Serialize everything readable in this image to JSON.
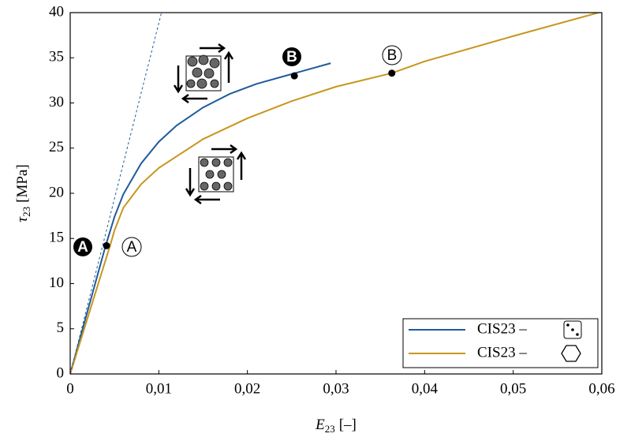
{
  "chart_data": {
    "type": "line",
    "xlabel": {
      "symbol": "E",
      "subscript": "23",
      "unit": "[–]"
    },
    "ylabel": {
      "symbol": "τ",
      "subscript": "23",
      "unit": "[MPa]"
    },
    "xlim": [
      0,
      0.06
    ],
    "ylim": [
      0,
      40
    ],
    "xticks": [
      0,
      {
        "value": 0.01,
        "label": "0,01"
      },
      {
        "value": 0.02,
        "label": "0,02"
      },
      {
        "value": 0.03,
        "label": "0,03"
      },
      {
        "value": 0.04,
        "label": "0,04"
      },
      {
        "value": 0.05,
        "label": "0,05"
      },
      {
        "value": 0.06,
        "label": "0,06"
      }
    ],
    "yticks": [
      0,
      5,
      10,
      15,
      20,
      25,
      30,
      35,
      40
    ],
    "series": [
      {
        "name": "CIS23 –",
        "color": "#1f5b9a",
        "x": [
          0,
          0.004,
          0.005,
          0.006,
          0.008,
          0.01,
          0.012,
          0.015,
          0.018,
          0.021,
          0.025,
          0.0294
        ],
        "values": [
          0,
          14.2,
          17.4,
          19.9,
          23.3,
          25.7,
          27.5,
          29.5,
          31.0,
          32.1,
          33.2,
          34.4
        ]
      },
      {
        "name": "CIS23 –",
        "color": "#c8961e",
        "x": [
          0,
          0.0045,
          0.005,
          0.006,
          0.008,
          0.01,
          0.015,
          0.02,
          0.025,
          0.03,
          0.0363,
          0.04,
          0.05,
          0.06
        ],
        "values": [
          0,
          14.2,
          15.9,
          18.4,
          21.0,
          22.8,
          26.0,
          28.3,
          30.2,
          31.8,
          33.3,
          34.6,
          37.4,
          40.1
        ]
      },
      {
        "color": "#1f5b9a",
        "dashed": true,
        "x": [
          0,
          0.0103
        ],
        "values": [
          0,
          40
        ]
      }
    ],
    "points": [
      {
        "x": 0.0041,
        "y": 14.2
      },
      {
        "x": 0.0253,
        "y": 33.0
      },
      {
        "x": 0.0363,
        "y": 33.3
      }
    ],
    "annotations": [
      {
        "text": "A"
      },
      {
        "text": "A"
      },
      {
        "text": "B"
      },
      {
        "text": "B"
      }
    ]
  }
}
